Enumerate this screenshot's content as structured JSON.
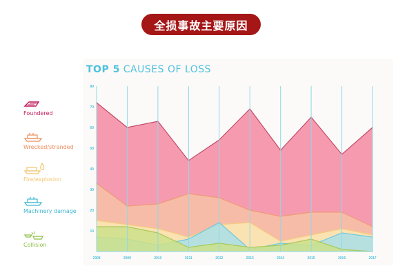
{
  "banner": {
    "text": "全损事故主要原因"
  },
  "chart_title": {
    "bold": "TOP 5",
    "rest": " CAUSES OF LOSS"
  },
  "colors": {
    "banner": "#a51616",
    "title": "#4fc1de",
    "foundered": "#c2185b",
    "wrecked": "#ed8c5a",
    "fire": "#f3c470",
    "machinery": "#3fb6cf",
    "collision": "#8cbf42",
    "gridline": "#8fd8ea"
  },
  "legend": [
    {
      "label": "Foundered",
      "icon": "foundered-ship-icon",
      "color": "#c2185b"
    },
    {
      "label": "Wrecked/stranded",
      "icon": "wrecked-ship-icon",
      "color": "#ed8c5a"
    },
    {
      "label": "Fire/explosion",
      "icon": "fire-ship-icon",
      "color": "#f3c470"
    },
    {
      "label": "Machinery damage",
      "icon": "machinery-ship-icon",
      "color": "#3fb6cf"
    },
    {
      "label": "Collision",
      "icon": "collision-ship-icon",
      "color": "#8cbf42"
    }
  ],
  "chart_data": {
    "type": "area",
    "title": "TOP 5 CAUSES OF LOSS",
    "x": [
      "2008",
      "2009",
      "2010",
      "2011",
      "2012",
      "2013",
      "2014",
      "2015",
      "2016",
      "2017"
    ],
    "ylim": [
      0,
      80
    ],
    "yticks": [
      10,
      20,
      30,
      40,
      50,
      60,
      70,
      80
    ],
    "grid": "vertical",
    "legend_position": "left",
    "series": [
      {
        "name": "Foundered",
        "color": "#f48aa2",
        "line": "#c24a6a",
        "values": [
          72,
          60,
          63,
          44,
          54,
          69,
          49,
          65,
          47,
          60
        ]
      },
      {
        "name": "Wrecked/stranded",
        "color": "#f7c2a6",
        "line": "#ee9a78",
        "values": [
          33,
          22,
          23,
          28,
          26,
          20,
          17,
          19,
          19,
          12
        ]
      },
      {
        "name": "Fire/explosion",
        "color": "#fbe9b4",
        "line": "#f4cd7e",
        "values": [
          15,
          13,
          11,
          7,
          13,
          14,
          5,
          8,
          11,
          8
        ]
      },
      {
        "name": "Machinery damage",
        "color": "#a9dfe6",
        "line": "#6fc8da",
        "values": [
          7,
          6,
          3,
          6,
          14,
          1,
          4,
          3,
          9,
          7
        ]
      },
      {
        "name": "Collision",
        "color": "#cde08a",
        "line": "#a9c95a",
        "values": [
          12,
          12,
          9,
          2,
          4,
          2,
          3,
          6,
          1,
          0
        ]
      }
    ]
  }
}
